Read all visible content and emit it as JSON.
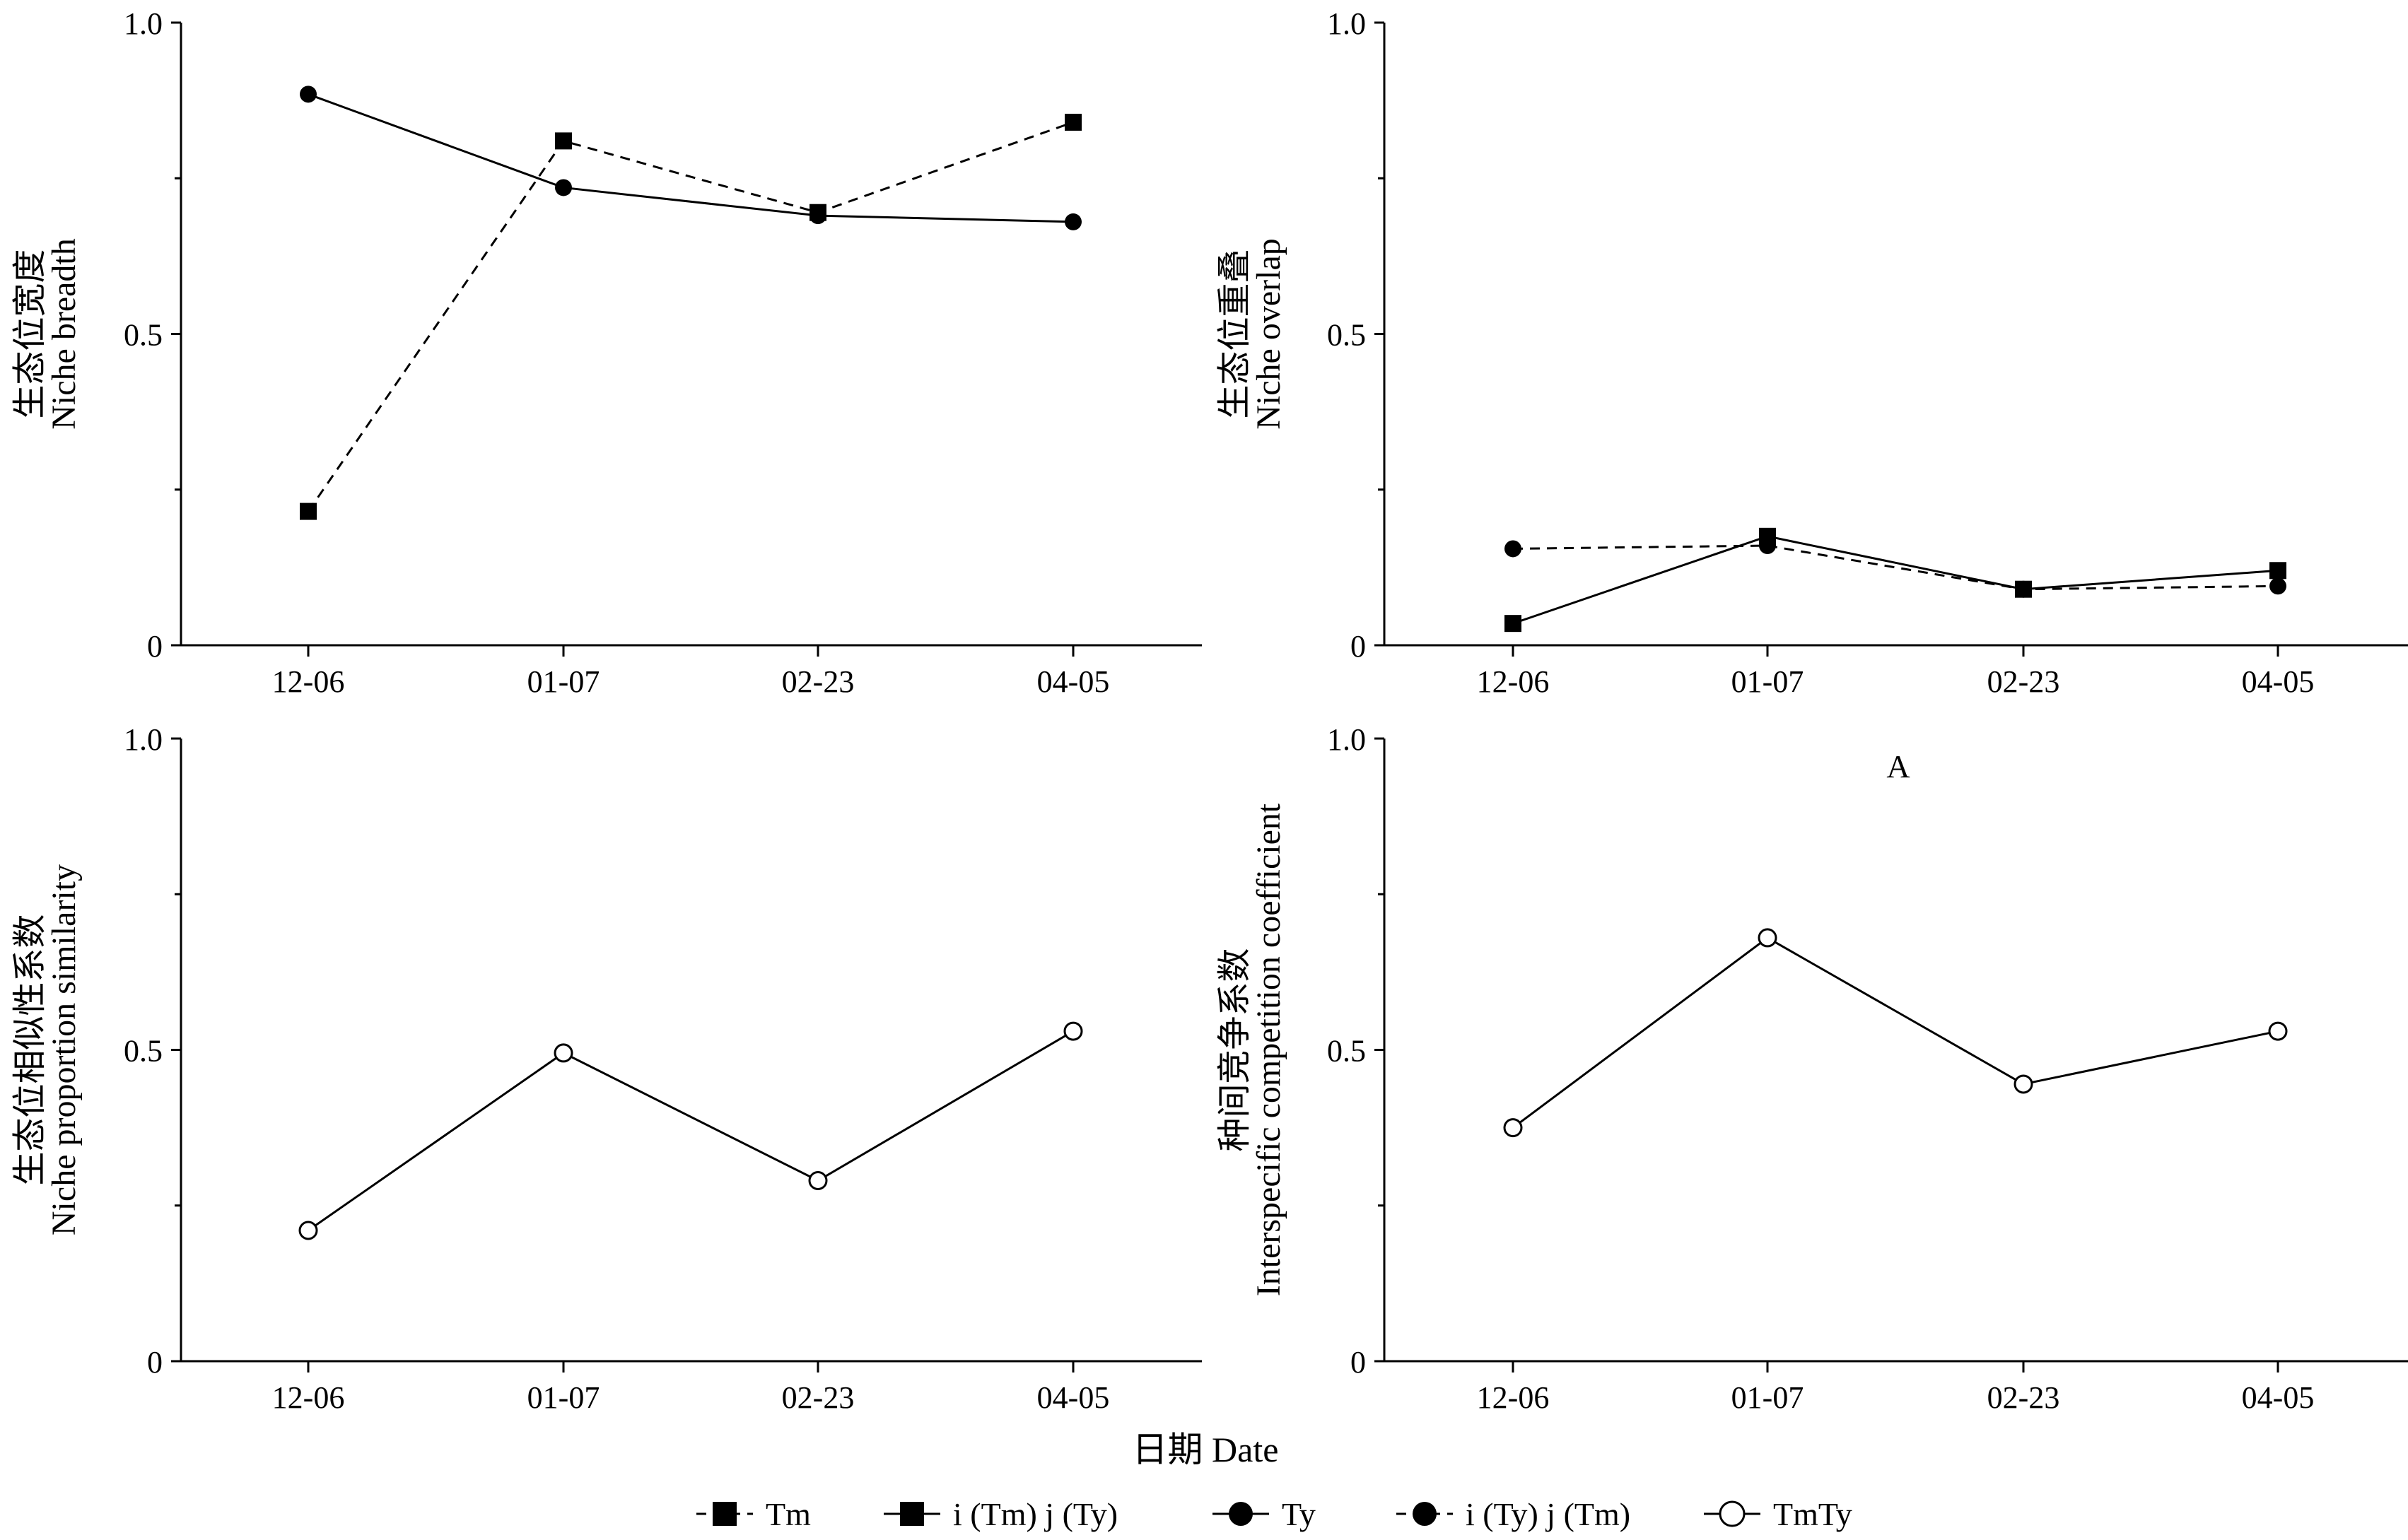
{
  "figure": {
    "xlabel": "日期  Date",
    "panel_marker": "A"
  },
  "legend": {
    "items": [
      {
        "label": "Tm",
        "marker": "square",
        "line": "dashed"
      },
      {
        "label": "i (Tm) j (Ty)",
        "marker": "square",
        "line": "solid"
      },
      {
        "label": "Ty",
        "marker": "circle",
        "line": "solid"
      },
      {
        "label": "i (Ty) j (Tm)",
        "marker": "circle",
        "line": "dashed"
      },
      {
        "label": "TmTy",
        "marker": "open-circle",
        "line": "solid"
      }
    ]
  },
  "chart_data": [
    {
      "type": "line",
      "ylabel_cn": "生态位宽度",
      "ylabel_en": "Niche breadth",
      "categories": [
        "12-06",
        "01-07",
        "02-23",
        "04-05"
      ],
      "ylim": [
        0,
        1.0
      ],
      "yticks": [
        "0",
        "0.5",
        "1.0"
      ],
      "series": [
        {
          "name": "Tm",
          "marker": "square",
          "line": "dashed",
          "values": [
            0.215,
            0.81,
            0.695,
            0.84
          ]
        },
        {
          "name": "Ty",
          "marker": "circle",
          "line": "solid",
          "values": [
            0.885,
            0.735,
            0.69,
            0.68
          ]
        }
      ]
    },
    {
      "type": "line",
      "ylabel_cn": "生态位重叠",
      "ylabel_en": "Niche overlap",
      "categories": [
        "12-06",
        "01-07",
        "02-23",
        "04-05"
      ],
      "ylim": [
        0,
        1.0
      ],
      "yticks": [
        "0",
        "0.5",
        "1.0"
      ],
      "series": [
        {
          "name": "i (Tm) j (Ty)",
          "marker": "square",
          "line": "solid",
          "values": [
            0.035,
            0.175,
            0.09,
            0.12
          ]
        },
        {
          "name": "i (Ty) j (Tm)",
          "marker": "circle",
          "line": "dashed",
          "values": [
            0.155,
            0.16,
            0.09,
            0.095
          ]
        }
      ]
    },
    {
      "type": "line",
      "ylabel_cn": "生态位相似性系数",
      "ylabel_en": "Niche proportion similarity",
      "categories": [
        "12-06",
        "01-07",
        "02-23",
        "04-05"
      ],
      "ylim": [
        0,
        1.0
      ],
      "yticks": [
        "0",
        "0.5",
        "1.0"
      ],
      "series": [
        {
          "name": "TmTy",
          "marker": "open-circle",
          "line": "solid",
          "values": [
            0.21,
            0.495,
            0.29,
            0.53
          ]
        }
      ]
    },
    {
      "type": "line",
      "ylabel_cn": "种间竞争系数",
      "ylabel_en": "Interspecific competition coefficient",
      "categories": [
        "12-06",
        "01-07",
        "02-23",
        "04-05"
      ],
      "ylim": [
        0,
        1.0
      ],
      "yticks": [
        "0",
        "0.5",
        "1.0"
      ],
      "series": [
        {
          "name": "TmTy",
          "marker": "open-circle",
          "line": "solid",
          "values": [
            0.375,
            0.68,
            0.445,
            0.53
          ]
        }
      ]
    }
  ]
}
